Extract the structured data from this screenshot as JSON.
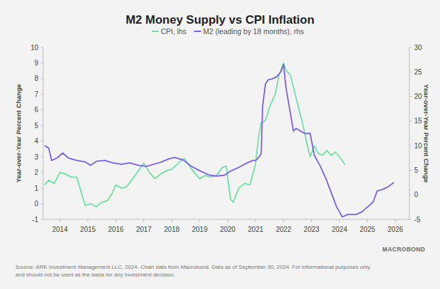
{
  "chart_data": {
    "type": "line",
    "title": "M2 Money Supply vs CPI Inflation",
    "y_label": "Year-over-Year Percent Change",
    "y2_label": "Year-over-Year Percent Change",
    "annotations": [
      "Source: ARK Investment Management LLC, 2024. Chart data from Macrobond. Data as of September 30, 2024. For informational purposes only",
      "and should not be used as the basis for any investment decision.",
      "MACROBOND"
    ],
    "xlim": [
      2013.4,
      2026.5
    ],
    "xticks": [
      2014,
      2015,
      2016,
      2017,
      2018,
      2019,
      2020,
      2021,
      2022,
      2023,
      2024,
      2025,
      2026
    ],
    "ylim": [
      -1,
      10
    ],
    "yticks": [
      -1,
      0,
      1,
      2,
      3,
      4,
      5,
      6,
      7,
      8,
      9,
      10
    ],
    "y2lim": [
      -5,
      30
    ],
    "y2ticks": [
      -5,
      0,
      5,
      10,
      15,
      20,
      25,
      30
    ],
    "grid": false,
    "legend": "top",
    "series": [
      {
        "name": "CPI, lhs",
        "color": "#6fe0a3",
        "axis": "y",
        "x": [
          2013.45,
          2013.6,
          2013.8,
          2014.0,
          2014.2,
          2014.4,
          2014.6,
          2014.75,
          2014.9,
          2015.1,
          2015.3,
          2015.5,
          2015.7,
          2015.85,
          2016.0,
          2016.2,
          2016.4,
          2016.6,
          2016.8,
          2017.0,
          2017.2,
          2017.4,
          2017.6,
          2017.8,
          2018.0,
          2018.3,
          2018.45,
          2018.6,
          2018.8,
          2019.0,
          2019.2,
          2019.4,
          2019.6,
          2019.8,
          2019.95,
          2020.1,
          2020.2,
          2020.4,
          2020.6,
          2020.8,
          2021.0,
          2021.1,
          2021.2,
          2021.35,
          2021.5,
          2021.7,
          2021.85,
          2022.0,
          2022.1,
          2022.25,
          2022.4,
          2022.5,
          2022.7,
          2022.8,
          2022.95,
          2023.1,
          2023.25,
          2023.4,
          2023.55,
          2023.7,
          2023.85,
          2024.0,
          2024.2
        ],
        "values": [
          1.2,
          1.5,
          1.3,
          2.0,
          1.9,
          1.7,
          1.7,
          0.8,
          -0.1,
          0.0,
          -0.2,
          0.1,
          0.2,
          0.6,
          1.2,
          1.0,
          1.1,
          1.6,
          2.1,
          2.6,
          2.0,
          1.6,
          1.9,
          2.1,
          2.2,
          2.7,
          2.9,
          2.5,
          2.0,
          1.6,
          1.8,
          1.7,
          1.8,
          2.3,
          2.4,
          0.3,
          0.1,
          1.0,
          1.3,
          1.2,
          2.6,
          4.2,
          5.2,
          5.3,
          6.2,
          7.0,
          8.3,
          9.0,
          8.5,
          8.2,
          7.1,
          6.4,
          5.0,
          4.1,
          3.0,
          3.7,
          3.2,
          3.1,
          3.4,
          3.1,
          3.3,
          3.0,
          2.5
        ]
      },
      {
        "name": "M2 (leading by 18 months), rhs",
        "color": "#7b5ce6",
        "axis": "y2",
        "x": [
          2013.45,
          2013.6,
          2013.7,
          2013.9,
          2014.1,
          2014.3,
          2014.6,
          2014.9,
          2015.1,
          2015.3,
          2015.6,
          2015.9,
          2016.2,
          2016.5,
          2016.8,
          2017.1,
          2017.4,
          2017.6,
          2017.9,
          2018.1,
          2018.4,
          2018.7,
          2019.0,
          2019.3,
          2019.6,
          2019.9,
          2020.1,
          2020.4,
          2020.7,
          2020.9,
          2021.0,
          2021.1,
          2021.2,
          2021.25,
          2021.35,
          2021.45,
          2021.6,
          2021.75,
          2021.9,
          2022.0,
          2022.08,
          2022.2,
          2022.35,
          2022.45,
          2022.6,
          2022.75,
          2022.95,
          2023.1,
          2023.3,
          2023.5,
          2023.7,
          2023.9,
          2024.1,
          2024.3,
          2024.6,
          2024.8,
          2025.0,
          2025.2,
          2025.35,
          2025.5,
          2025.7,
          2025.95
        ],
        "values": [
          10,
          9.5,
          7,
          7.5,
          8.5,
          7.5,
          7,
          6.7,
          6,
          6.8,
          7,
          6.5,
          6.2,
          6.5,
          6,
          5.8,
          6.3,
          6.6,
          7.3,
          7.6,
          7.1,
          5.8,
          4.9,
          4.1,
          3.8,
          4,
          4.8,
          5.6,
          6.5,
          7,
          7.0,
          7.5,
          8.4,
          18,
          22.5,
          23.4,
          23.6,
          24,
          25,
          26.5,
          22,
          18,
          13,
          13.5,
          13,
          12.5,
          12.5,
          8,
          6,
          3.5,
          0.5,
          -2.5,
          -4.5,
          -4,
          -4,
          -3.5,
          -2.5,
          -1.5,
          0.8,
          1,
          1.5,
          2.5
        ]
      }
    ]
  }
}
